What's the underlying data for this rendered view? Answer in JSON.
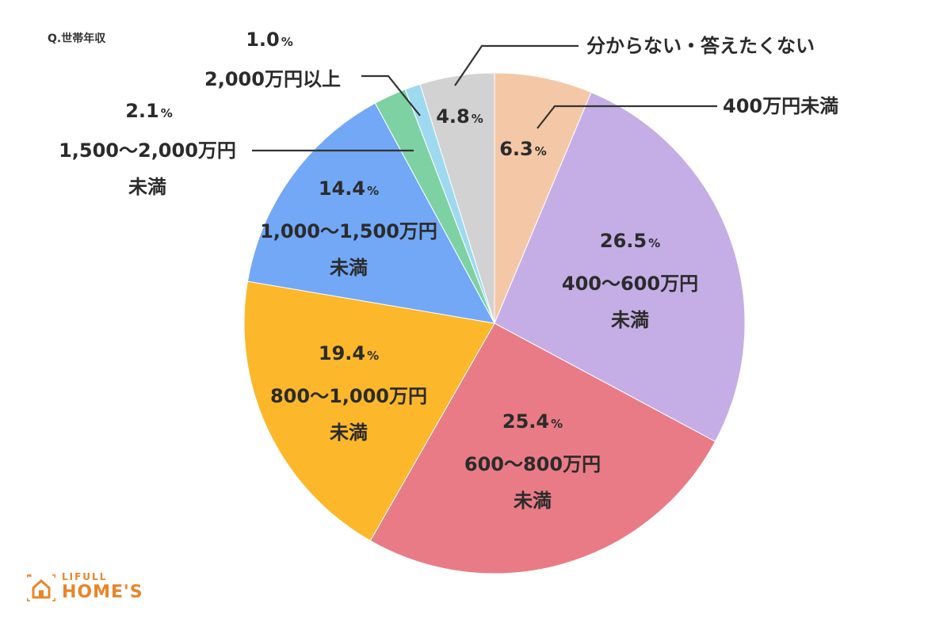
{
  "question": "Q.世帯年収",
  "logo": {
    "top": "LIFULL",
    "bottom": "HOME'S",
    "icon": "house-icon",
    "color": "#e8852a"
  },
  "chart_data": {
    "type": "pie",
    "title": "",
    "start": "top",
    "direction": "clockwise",
    "slices": [
      {
        "label_lines": [
          "400万円未満"
        ],
        "value": 6.3,
        "pct_text": "6.3",
        "color": "#f4c7a6"
      },
      {
        "label_lines": [
          "400〜600万円",
          "未満"
        ],
        "value": 26.5,
        "pct_text": "26.5",
        "color": "#c5aee6"
      },
      {
        "label_lines": [
          "600〜800万円",
          "未満"
        ],
        "value": 25.4,
        "pct_text": "25.4",
        "color": "#e97b86"
      },
      {
        "label_lines": [
          "800〜1,000万円",
          "未満"
        ],
        "value": 19.4,
        "pct_text": "19.4",
        "color": "#fcb72a"
      },
      {
        "label_lines": [
          "1,000〜1,500万円",
          "未満"
        ],
        "value": 14.4,
        "pct_text": "14.4",
        "color": "#72a8f5"
      },
      {
        "label_lines": [
          "1,500〜2,000万円",
          "未満"
        ],
        "value": 2.1,
        "pct_text": "2.1",
        "color": "#7ed1a3"
      },
      {
        "label_lines": [
          "2,000万円以上"
        ],
        "value": 1.0,
        "pct_text": "1.0",
        "color": "#9fd9ef"
      },
      {
        "label_lines": [
          "分からない・答えたくない"
        ],
        "value": 4.8,
        "pct_text": "4.8",
        "color": "#d2d2d2"
      }
    ],
    "pct_suffix": "%",
    "legend": "none",
    "labels_inside": true
  }
}
